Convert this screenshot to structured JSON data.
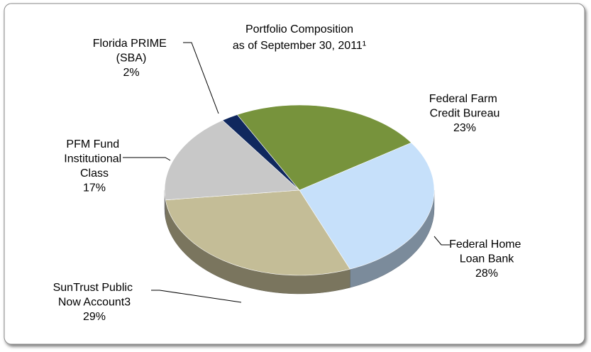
{
  "chart_data": {
    "type": "pie3d",
    "title": "Portfolio Composition",
    "subtitle": "as of September 30, 2011¹",
    "categories": [
      "Federal Farm Credit Bureau",
      "Federal Home Loan Bank",
      "SunTrust Public Now Account3",
      "PFM Fund Institutional Class",
      "Florida PRIME (SBA)"
    ],
    "values": [
      23,
      28,
      29,
      17,
      2
    ],
    "value_labels": [
      "23%",
      "28%",
      "29%",
      "17%",
      "2%"
    ],
    "colors": [
      "#77933c",
      "#c6e0fa",
      "#c4bd97",
      "#c8c8c8",
      "#10285e"
    ]
  }
}
